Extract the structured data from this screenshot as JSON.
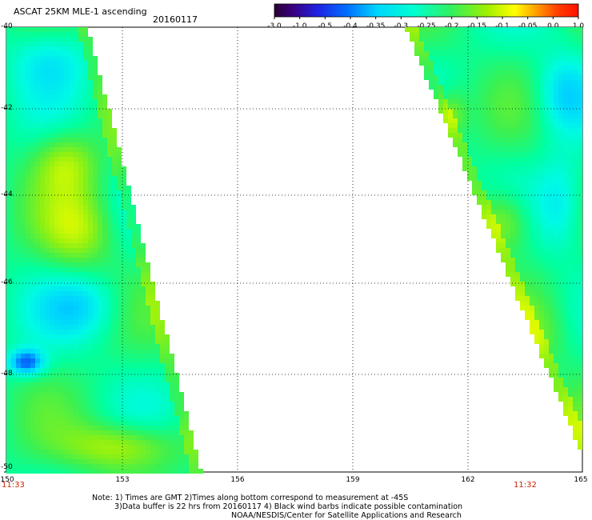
{
  "title": "ASCAT 25KM MLE-1 ascending",
  "date": "20160117",
  "colorbar": {
    "ticks": [
      "-3.0",
      "-1.0",
      "-0.5",
      "-0.4",
      "-0.35",
      "-0.3",
      "-0.25",
      "-0.2",
      "-0.15",
      "-0.1",
      "-0.05",
      "0.0",
      "1.0"
    ],
    "colors": [
      "#2a0033",
      "#4b0082",
      "#5a10c0",
      "#2020e8",
      "#1060ff",
      "#00a8ff",
      "#00e8ff",
      "#00ffa0",
      "#40f040",
      "#a0f000",
      "#ffff00",
      "#ffa000",
      "#ff2000"
    ]
  },
  "lat_labels": [
    "-40",
    "-42",
    "-44",
    "-46",
    "-48",
    "-50"
  ],
  "lon_labels": [
    "150",
    "153",
    "156",
    "159",
    "162",
    "165"
  ],
  "times": {
    "left": "11:33",
    "right": "11:32"
  },
  "notes": [
    "Note: 1) Times are GMT 2)Times along bottom correspond to measurement at -45S",
    "3)Data buffer is 22 hrs from 20160117 4) Black wind barbs indicate possible contamination",
    "NOAA/NESDIS/Center for Satellite Applications and Research"
  ],
  "map_data": {
    "lat_range": [
      -50,
      -40
    ],
    "lon_range": [
      150,
      165
    ],
    "swaths": [
      {
        "name": "west",
        "dominant_values": "-0.3 to -0.1, with lows near -0.4 around 48S 150.5E"
      },
      {
        "name": "east",
        "dominant_values": "-0.3 to -0.1, with highs near -0.05 along the western edge"
      }
    ]
  }
}
